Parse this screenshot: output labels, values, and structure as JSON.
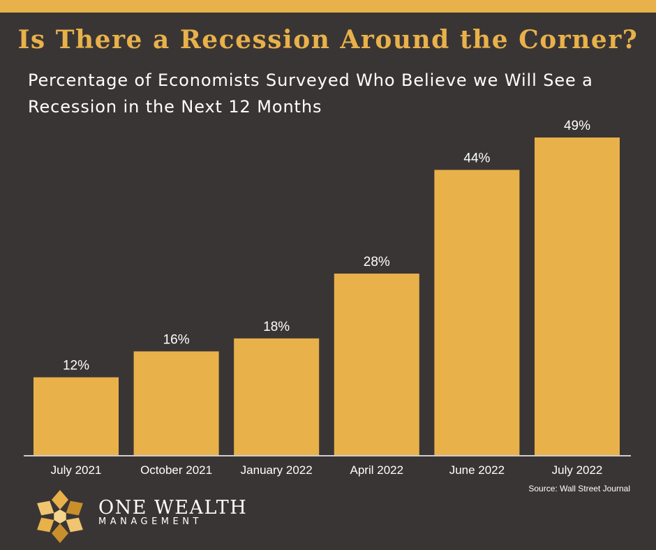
{
  "colors": {
    "background": "#3a3535",
    "accent": "#e8b14a",
    "text": "#ffffff"
  },
  "header": {
    "title": "Is There a Recession Around the Corner?",
    "subtitle": "Percentage of Economists Surveyed Who Believe we Will See a Recession in the Next 12 Months"
  },
  "chart_data": {
    "type": "bar",
    "title": "Is There a Recession Around the Corner?",
    "subtitle": "Percentage of Economists Surveyed Who Believe we Will See a Recession in the Next 12 Months",
    "categories": [
      "July 2021",
      "October 2021",
      "January 2022",
      "April 2022",
      "June 2022",
      "July 2022"
    ],
    "values": [
      12,
      16,
      18,
      28,
      44,
      49
    ],
    "data_labels": [
      "12%",
      "16%",
      "18%",
      "28%",
      "44%",
      "49%"
    ],
    "unit": "%",
    "xlabel": "",
    "ylabel": "",
    "ylim": [
      0,
      49
    ],
    "grid": false,
    "legend": "none",
    "bar_color": "#e8b14a"
  },
  "footer": {
    "source": "Source: Wall Street Journal",
    "brand_name": "ONE WEALTH",
    "brand_sub": "MANAGEMENT"
  }
}
